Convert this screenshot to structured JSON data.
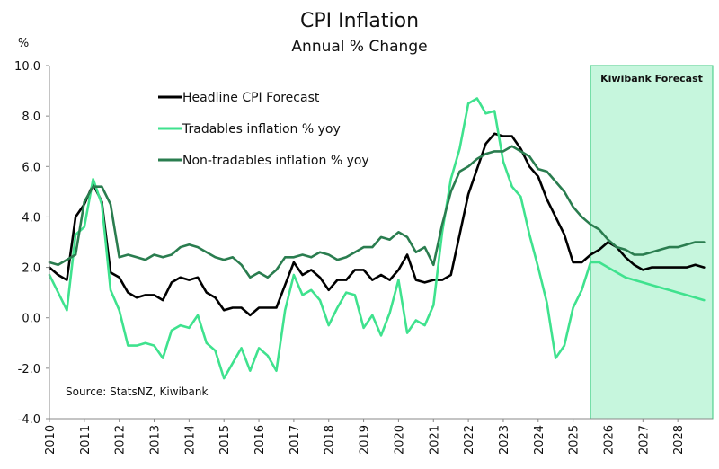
{
  "chart_data": {
    "type": "line",
    "title": "CPI Inflation",
    "subtitle": "Annual % Change",
    "ylabel": "%",
    "ylim": [
      -4.0,
      10.0
    ],
    "yticks": [
      "-4.0",
      "-2.0",
      "0.0",
      "2.0",
      "4.0",
      "6.0",
      "8.0",
      "10.0"
    ],
    "xlim": [
      2010.0,
      2029.0
    ],
    "xticks": [
      "2010",
      "2011",
      "2012",
      "2013",
      "2014",
      "2015",
      "2016",
      "2017",
      "2018",
      "2019",
      "2020",
      "2021",
      "2022",
      "2023",
      "2024",
      "2025",
      "2026",
      "2027",
      "2028"
    ],
    "forecast": {
      "label": "Kiwibank Forecast",
      "start": 2025.5,
      "end": 2029.0,
      "color": "#c6f6dd"
    },
    "source": "Source: StatsNZ, Kiwibank",
    "series": [
      {
        "name": "Headline CPI Forecast",
        "color": "#000000",
        "x": [
          2010.0,
          2010.25,
          2010.5,
          2010.75,
          2011.0,
          2011.25,
          2011.5,
          2011.75,
          2012.0,
          2012.25,
          2012.5,
          2012.75,
          2013.0,
          2013.25,
          2013.5,
          2013.75,
          2014.0,
          2014.25,
          2014.5,
          2014.75,
          2015.0,
          2015.25,
          2015.5,
          2015.75,
          2016.0,
          2016.25,
          2016.5,
          2016.75,
          2017.0,
          2017.25,
          2017.5,
          2017.75,
          2018.0,
          2018.25,
          2018.5,
          2018.75,
          2019.0,
          2019.25,
          2019.5,
          2019.75,
          2020.0,
          2020.25,
          2020.5,
          2020.75,
          2021.0,
          2021.25,
          2021.5,
          2021.75,
          2022.0,
          2022.25,
          2022.5,
          2022.75,
          2023.0,
          2023.25,
          2023.5,
          2023.75,
          2024.0,
          2024.25,
          2024.5,
          2024.75,
          2025.0,
          2025.25,
          2025.5,
          2025.75,
          2026.0,
          2026.25,
          2026.5,
          2026.75,
          2027.0,
          2027.25,
          2027.5,
          2027.75,
          2028.0,
          2028.25,
          2028.5,
          2028.75
        ],
        "values": [
          2.0,
          1.7,
          1.5,
          4.0,
          4.5,
          5.3,
          4.6,
          1.8,
          1.6,
          1.0,
          0.8,
          0.9,
          0.9,
          0.7,
          1.4,
          1.6,
          1.5,
          1.6,
          1.0,
          0.8,
          0.3,
          0.4,
          0.4,
          0.1,
          0.4,
          0.4,
          0.4,
          1.3,
          2.2,
          1.7,
          1.9,
          1.6,
          1.1,
          1.5,
          1.5,
          1.9,
          1.9,
          1.5,
          1.7,
          1.5,
          1.9,
          2.5,
          1.5,
          1.4,
          1.5,
          1.5,
          1.7,
          3.3,
          4.9,
          5.9,
          6.9,
          7.3,
          7.2,
          7.2,
          6.7,
          6.0,
          5.6,
          4.7,
          4.0,
          3.3,
          2.2,
          2.2,
          2.5,
          2.7,
          3.0,
          2.8,
          2.4,
          2.1,
          1.9,
          2.0,
          2.0,
          2.0,
          2.0,
          2.0,
          2.1,
          2.0
        ]
      },
      {
        "name": "Tradables inflation % yoy",
        "color": "#3fe28e",
        "x": [
          2010.0,
          2010.25,
          2010.5,
          2010.75,
          2011.0,
          2011.25,
          2011.5,
          2011.75,
          2012.0,
          2012.25,
          2012.5,
          2012.75,
          2013.0,
          2013.25,
          2013.5,
          2013.75,
          2014.0,
          2014.25,
          2014.5,
          2014.75,
          2015.0,
          2015.25,
          2015.5,
          2015.75,
          2016.0,
          2016.25,
          2016.5,
          2016.75,
          2017.0,
          2017.25,
          2017.5,
          2017.75,
          2018.0,
          2018.25,
          2018.5,
          2018.75,
          2019.0,
          2019.25,
          2019.5,
          2019.75,
          2020.0,
          2020.25,
          2020.5,
          2020.75,
          2021.0,
          2021.25,
          2021.5,
          2021.75,
          2022.0,
          2022.25,
          2022.5,
          2022.75,
          2023.0,
          2023.25,
          2023.5,
          2023.75,
          2024.0,
          2024.25,
          2024.5,
          2024.75,
          2025.0,
          2025.25,
          2025.5,
          2025.75,
          2026.0,
          2026.25,
          2026.5,
          2026.75,
          2027.0,
          2027.25,
          2027.5,
          2027.75,
          2028.0,
          2028.25,
          2028.5,
          2028.75
        ],
        "values": [
          1.7,
          1.0,
          0.3,
          3.3,
          3.6,
          5.5,
          4.5,
          1.1,
          0.3,
          -1.1,
          -1.1,
          -1.0,
          -1.1,
          -1.6,
          -0.5,
          -0.3,
          -0.4,
          0.1,
          -1.0,
          -1.3,
          -2.4,
          -1.8,
          -1.2,
          -2.1,
          -1.2,
          -1.5,
          -2.1,
          0.3,
          1.7,
          0.9,
          1.1,
          0.7,
          -0.3,
          0.4,
          1.0,
          0.9,
          -0.4,
          0.1,
          -0.7,
          0.2,
          1.5,
          -0.6,
          -0.1,
          -0.3,
          0.5,
          3.4,
          5.5,
          6.7,
          8.5,
          8.7,
          8.1,
          8.2,
          6.2,
          5.2,
          4.8,
          3.3,
          2.0,
          0.6,
          -1.6,
          -1.1,
          0.4,
          1.1,
          2.2,
          2.2,
          2.0,
          1.8,
          1.6,
          1.5,
          1.4,
          1.3,
          1.2,
          1.1,
          1.0,
          0.9,
          0.8,
          0.7
        ]
      },
      {
        "name": "Non-tradables inflation % yoy",
        "color": "#2a7d4f",
        "x": [
          2010.0,
          2010.25,
          2010.5,
          2010.75,
          2011.0,
          2011.25,
          2011.5,
          2011.75,
          2012.0,
          2012.25,
          2012.5,
          2012.75,
          2013.0,
          2013.25,
          2013.5,
          2013.75,
          2014.0,
          2014.25,
          2014.5,
          2014.75,
          2015.0,
          2015.25,
          2015.5,
          2015.75,
          2016.0,
          2016.25,
          2016.5,
          2016.75,
          2017.0,
          2017.25,
          2017.5,
          2017.75,
          2018.0,
          2018.25,
          2018.5,
          2018.75,
          2019.0,
          2019.25,
          2019.5,
          2019.75,
          2020.0,
          2020.25,
          2020.5,
          2020.75,
          2021.0,
          2021.25,
          2021.5,
          2021.75,
          2022.0,
          2022.25,
          2022.5,
          2022.75,
          2023.0,
          2023.25,
          2023.5,
          2023.75,
          2024.0,
          2024.25,
          2024.5,
          2024.75,
          2025.0,
          2025.25,
          2025.5,
          2025.75,
          2026.0,
          2026.25,
          2026.5,
          2026.75,
          2027.0,
          2027.25,
          2027.5,
          2027.75,
          2028.0,
          2028.25,
          2028.5,
          2028.75
        ],
        "values": [
          2.2,
          2.1,
          2.3,
          2.5,
          4.6,
          5.2,
          5.2,
          4.5,
          2.4,
          2.5,
          2.4,
          2.3,
          2.5,
          2.4,
          2.5,
          2.8,
          2.9,
          2.8,
          2.6,
          2.4,
          2.3,
          2.4,
          2.1,
          1.6,
          1.8,
          1.6,
          1.9,
          2.4,
          2.4,
          2.5,
          2.4,
          2.6,
          2.5,
          2.3,
          2.4,
          2.6,
          2.8,
          2.8,
          3.2,
          3.1,
          3.4,
          3.2,
          2.6,
          2.8,
          2.1,
          3.7,
          5.0,
          5.8,
          6.0,
          6.3,
          6.5,
          6.6,
          6.6,
          6.8,
          6.6,
          6.4,
          5.9,
          5.8,
          5.4,
          5.0,
          4.4,
          4.0,
          3.7,
          3.5,
          3.1,
          2.8,
          2.7,
          2.5,
          2.5,
          2.6,
          2.7,
          2.8,
          2.8,
          2.9,
          3.0,
          3.0
        ]
      }
    ]
  }
}
